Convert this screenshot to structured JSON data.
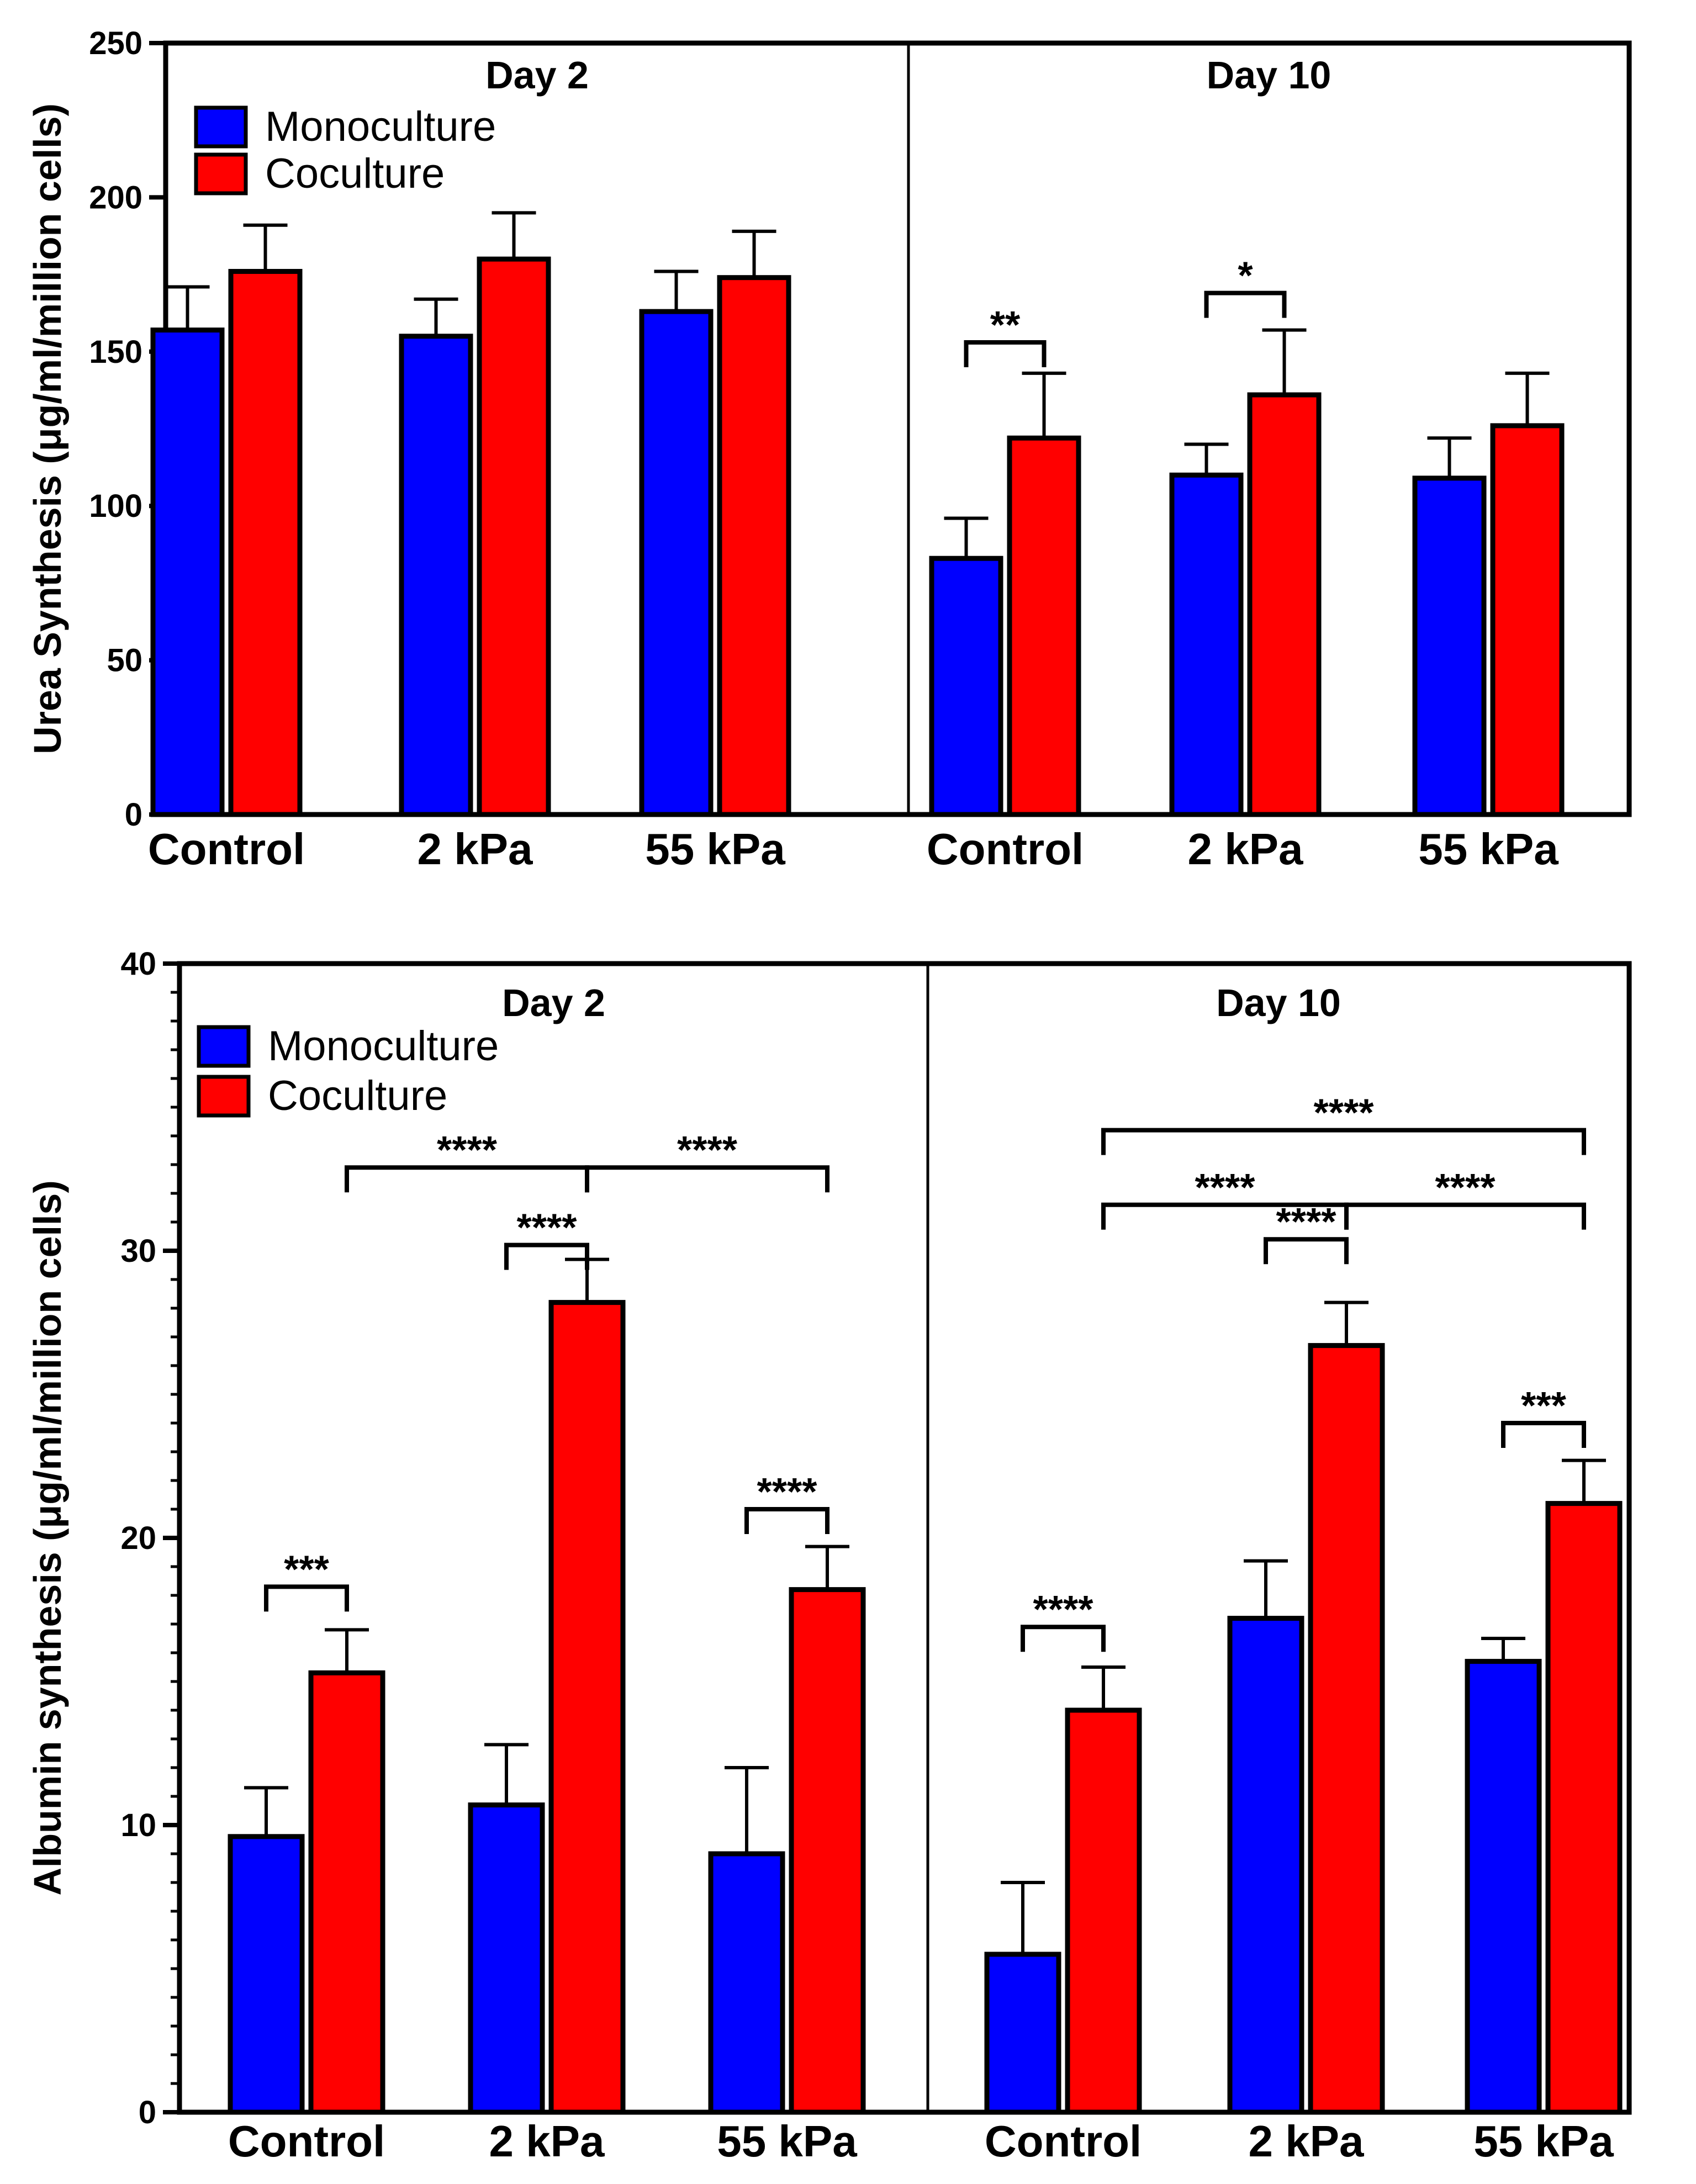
{
  "colors": {
    "monoculture": "#0000FF",
    "coculture": "#FF0000",
    "axis": "#000000"
  },
  "chart_data": [
    {
      "id": "urea",
      "type": "bar",
      "ylabel": "Urea Synthesis (μg/ml/million cells)",
      "ylim": [
        0,
        250
      ],
      "yticks": [
        0,
        50,
        100,
        150,
        200,
        250
      ],
      "ytick_labels": [
        "0",
        "50",
        "100",
        "150",
        "200",
        "250"
      ],
      "legend": {
        "placement": "top-left",
        "entries": [
          "Monoculture",
          "Coculture"
        ]
      },
      "panels": [
        {
          "title": "Day 2",
          "categories": [
            "Control",
            "2 kPa",
            "55 kPa"
          ],
          "series": [
            {
              "name": "Monoculture",
              "values": [
                157,
                155,
                163
              ],
              "errors": [
                14,
                12,
                13
              ]
            },
            {
              "name": "Coculture",
              "values": [
                176,
                180,
                174
              ],
              "errors": [
                15,
                15,
                15
              ]
            }
          ],
          "brackets": []
        },
        {
          "title": "Day 10",
          "categories": [
            "Control",
            "2 kPa",
            "55 kPa"
          ],
          "series": [
            {
              "name": "Monoculture",
              "values": [
                83,
                110,
                109
              ],
              "errors": [
                13,
                10,
                13
              ]
            },
            {
              "name": "Coculture",
              "values": [
                122,
                136,
                126
              ],
              "errors": [
                21,
                21,
                17
              ]
            }
          ],
          "brackets": [
            {
              "from": [
                0,
                0
              ],
              "to": [
                0,
                1
              ],
              "y": 153,
              "label": "**"
            },
            {
              "from": [
                1,
                0
              ],
              "to": [
                1,
                1
              ],
              "y": 169,
              "label": "*"
            }
          ]
        }
      ]
    },
    {
      "id": "albumin",
      "type": "bar",
      "ylabel": "Albumin synthesis (μg/ml/million cells)",
      "ylim": [
        0,
        40
      ],
      "yticks": [
        0,
        10,
        20,
        30,
        40
      ],
      "ytick_labels": [
        "0",
        "10",
        "20",
        "30",
        "40"
      ],
      "minor_ticks": 1,
      "legend": {
        "placement": "top-left",
        "entries": [
          "Monoculture",
          "Coculture"
        ]
      },
      "panels": [
        {
          "title": "Day 2",
          "categories": [
            "Control",
            "2 kPa",
            "55 kPa"
          ],
          "series": [
            {
              "name": "Monoculture",
              "values": [
                9.6,
                10.7,
                9.0
              ],
              "errors": [
                1.7,
                2.1,
                3.0
              ]
            },
            {
              "name": "Coculture",
              "values": [
                15.3,
                28.2,
                18.2
              ],
              "errors": [
                1.5,
                1.5,
                1.5
              ]
            }
          ],
          "brackets": [
            {
              "from": [
                0,
                0
              ],
              "to": [
                0,
                1
              ],
              "y": 18.3,
              "label": "***"
            },
            {
              "from": [
                1,
                0
              ],
              "to": [
                1,
                1
              ],
              "y": 30.2,
              "label": "****"
            },
            {
              "from": [
                2,
                0
              ],
              "to": [
                2,
                1
              ],
              "y": 21.0,
              "label": "****"
            },
            {
              "from": [
                0,
                1
              ],
              "to": [
                1,
                1
              ],
              "y": 32.9,
              "label": "****"
            },
            {
              "from": [
                1,
                1
              ],
              "to": [
                2,
                1
              ],
              "y": 32.9,
              "label": "****"
            }
          ]
        },
        {
          "title": "Day 10",
          "categories": [
            "Control",
            "2 kPa",
            "55 kPa"
          ],
          "series": [
            {
              "name": "Monoculture",
              "values": [
                5.5,
                17.2,
                15.7
              ],
              "errors": [
                2.5,
                2.0,
                0.8
              ]
            },
            {
              "name": "Coculture",
              "values": [
                14.0,
                26.7,
                21.2
              ],
              "errors": [
                1.5,
                1.5,
                1.5
              ]
            }
          ],
          "brackets": [
            {
              "from": [
                0,
                0
              ],
              "to": [
                0,
                1
              ],
              "y": 16.9,
              "label": "****"
            },
            {
              "from": [
                1,
                0
              ],
              "to": [
                1,
                1
              ],
              "y": 30.4,
              "label": "****"
            },
            {
              "from": [
                2,
                0
              ],
              "to": [
                2,
                1
              ],
              "y": 24.0,
              "label": "***"
            },
            {
              "from": [
                0,
                1
              ],
              "to": [
                1,
                1
              ],
              "y": 31.6,
              "label": "****"
            },
            {
              "from": [
                1,
                1
              ],
              "to": [
                2,
                1
              ],
              "y": 31.6,
              "label": "****"
            },
            {
              "from": [
                0,
                1
              ],
              "to": [
                2,
                1
              ],
              "y": 34.2,
              "label": "****"
            }
          ]
        }
      ]
    }
  ]
}
